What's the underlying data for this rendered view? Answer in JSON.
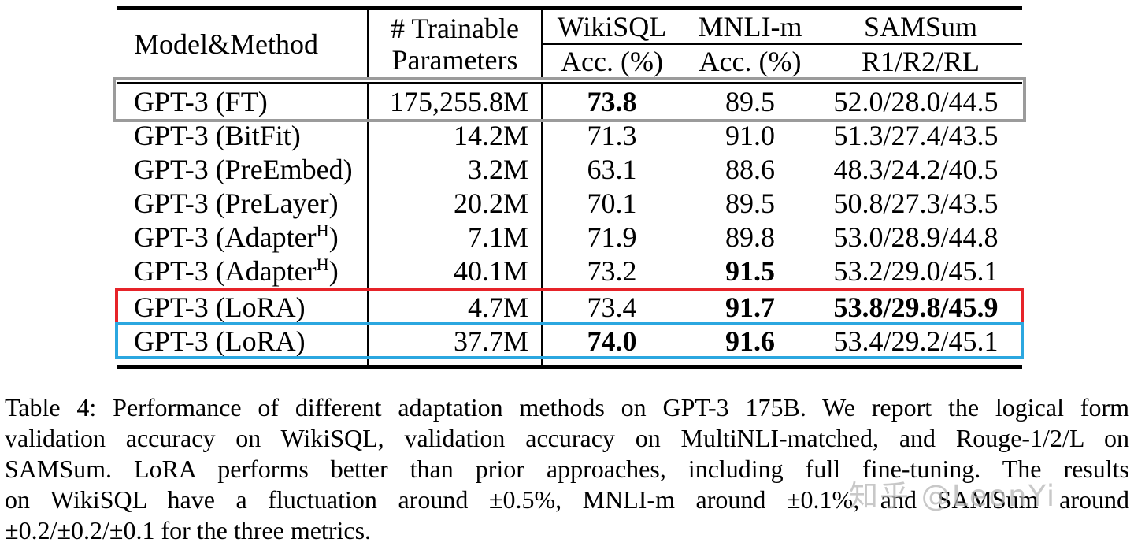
{
  "table": {
    "header": {
      "col_model": "Model&Method",
      "col_params_line1": "# Trainable",
      "col_params_line2": "Parameters",
      "groups": [
        {
          "name": "WikiSQL",
          "sub": "Acc. (%)"
        },
        {
          "name": "MNLI-m",
          "sub": "Acc. (%)"
        },
        {
          "name": "SAMSum",
          "sub": "R1/R2/RL"
        }
      ]
    },
    "rows": [
      {
        "model_pre": "GPT-3 (FT)",
        "model_sup": "",
        "model_post": "",
        "params": "175,255.8M",
        "wikisql": "73.8",
        "mnli": "89.5",
        "samsum": "52.0/28.0/44.5"
      },
      {
        "model_pre": "GPT-3 (BitFit)",
        "model_sup": "",
        "model_post": "",
        "params": "14.2M",
        "wikisql": "71.3",
        "mnli": "91.0",
        "samsum": "51.3/27.4/43.5"
      },
      {
        "model_pre": "GPT-3 (PreEmbed)",
        "model_sup": "",
        "model_post": "",
        "params": "3.2M",
        "wikisql": "63.1",
        "mnli": "88.6",
        "samsum": "48.3/24.2/40.5"
      },
      {
        "model_pre": "GPT-3 (PreLayer)",
        "model_sup": "",
        "model_post": "",
        "params": "20.2M",
        "wikisql": "70.1",
        "mnli": "89.5",
        "samsum": "50.8/27.3/43.5"
      },
      {
        "model_pre": "GPT-3 (Adapter",
        "model_sup": "H",
        "model_post": ")",
        "params": "7.1M",
        "wikisql": "71.9",
        "mnli": "89.8",
        "samsum": "53.0/28.9/44.8"
      },
      {
        "model_pre": "GPT-3 (Adapter",
        "model_sup": "H",
        "model_post": ")",
        "params": "40.1M",
        "wikisql": "73.2",
        "mnli": "91.5",
        "samsum": "53.2/29.0/45.1"
      },
      {
        "model_pre": "GPT-3 (LoRA)",
        "model_sup": "",
        "model_post": "",
        "params": "4.7M",
        "wikisql": "73.4",
        "mnli": "91.7",
        "samsum": "53.8/29.8/45.9"
      },
      {
        "model_pre": "GPT-3 (LoRA)",
        "model_sup": "",
        "model_post": "",
        "params": "37.7M",
        "wikisql": "74.0",
        "mnli": "91.6",
        "samsum": "53.4/29.2/45.1"
      }
    ],
    "highlight_colors": {
      "full_finetune_box": "#9b9b9b",
      "lora_low_rank_box": "#e62329",
      "lora_high_rank_box": "#2ba7e0"
    }
  },
  "caption": {
    "lines": [
      "Table 4: Performance of different adaptation methods on GPT-3 175B. We report the logical form",
      "validation accuracy on WikiSQL, validation accuracy on MultiNLI-matched, and Rouge-1/2/L on",
      "SAMSum. LoRA performs better than prior approaches, including full fine-tuning. The results",
      "on WikiSQL have a fluctuation around ±0.5%, MNLI-m around ±0.1%, and SAMSum around",
      "±0.2/±0.2/±0.1 for the three metrics."
    ]
  },
  "watermark": "知乎 @LeonYi"
}
